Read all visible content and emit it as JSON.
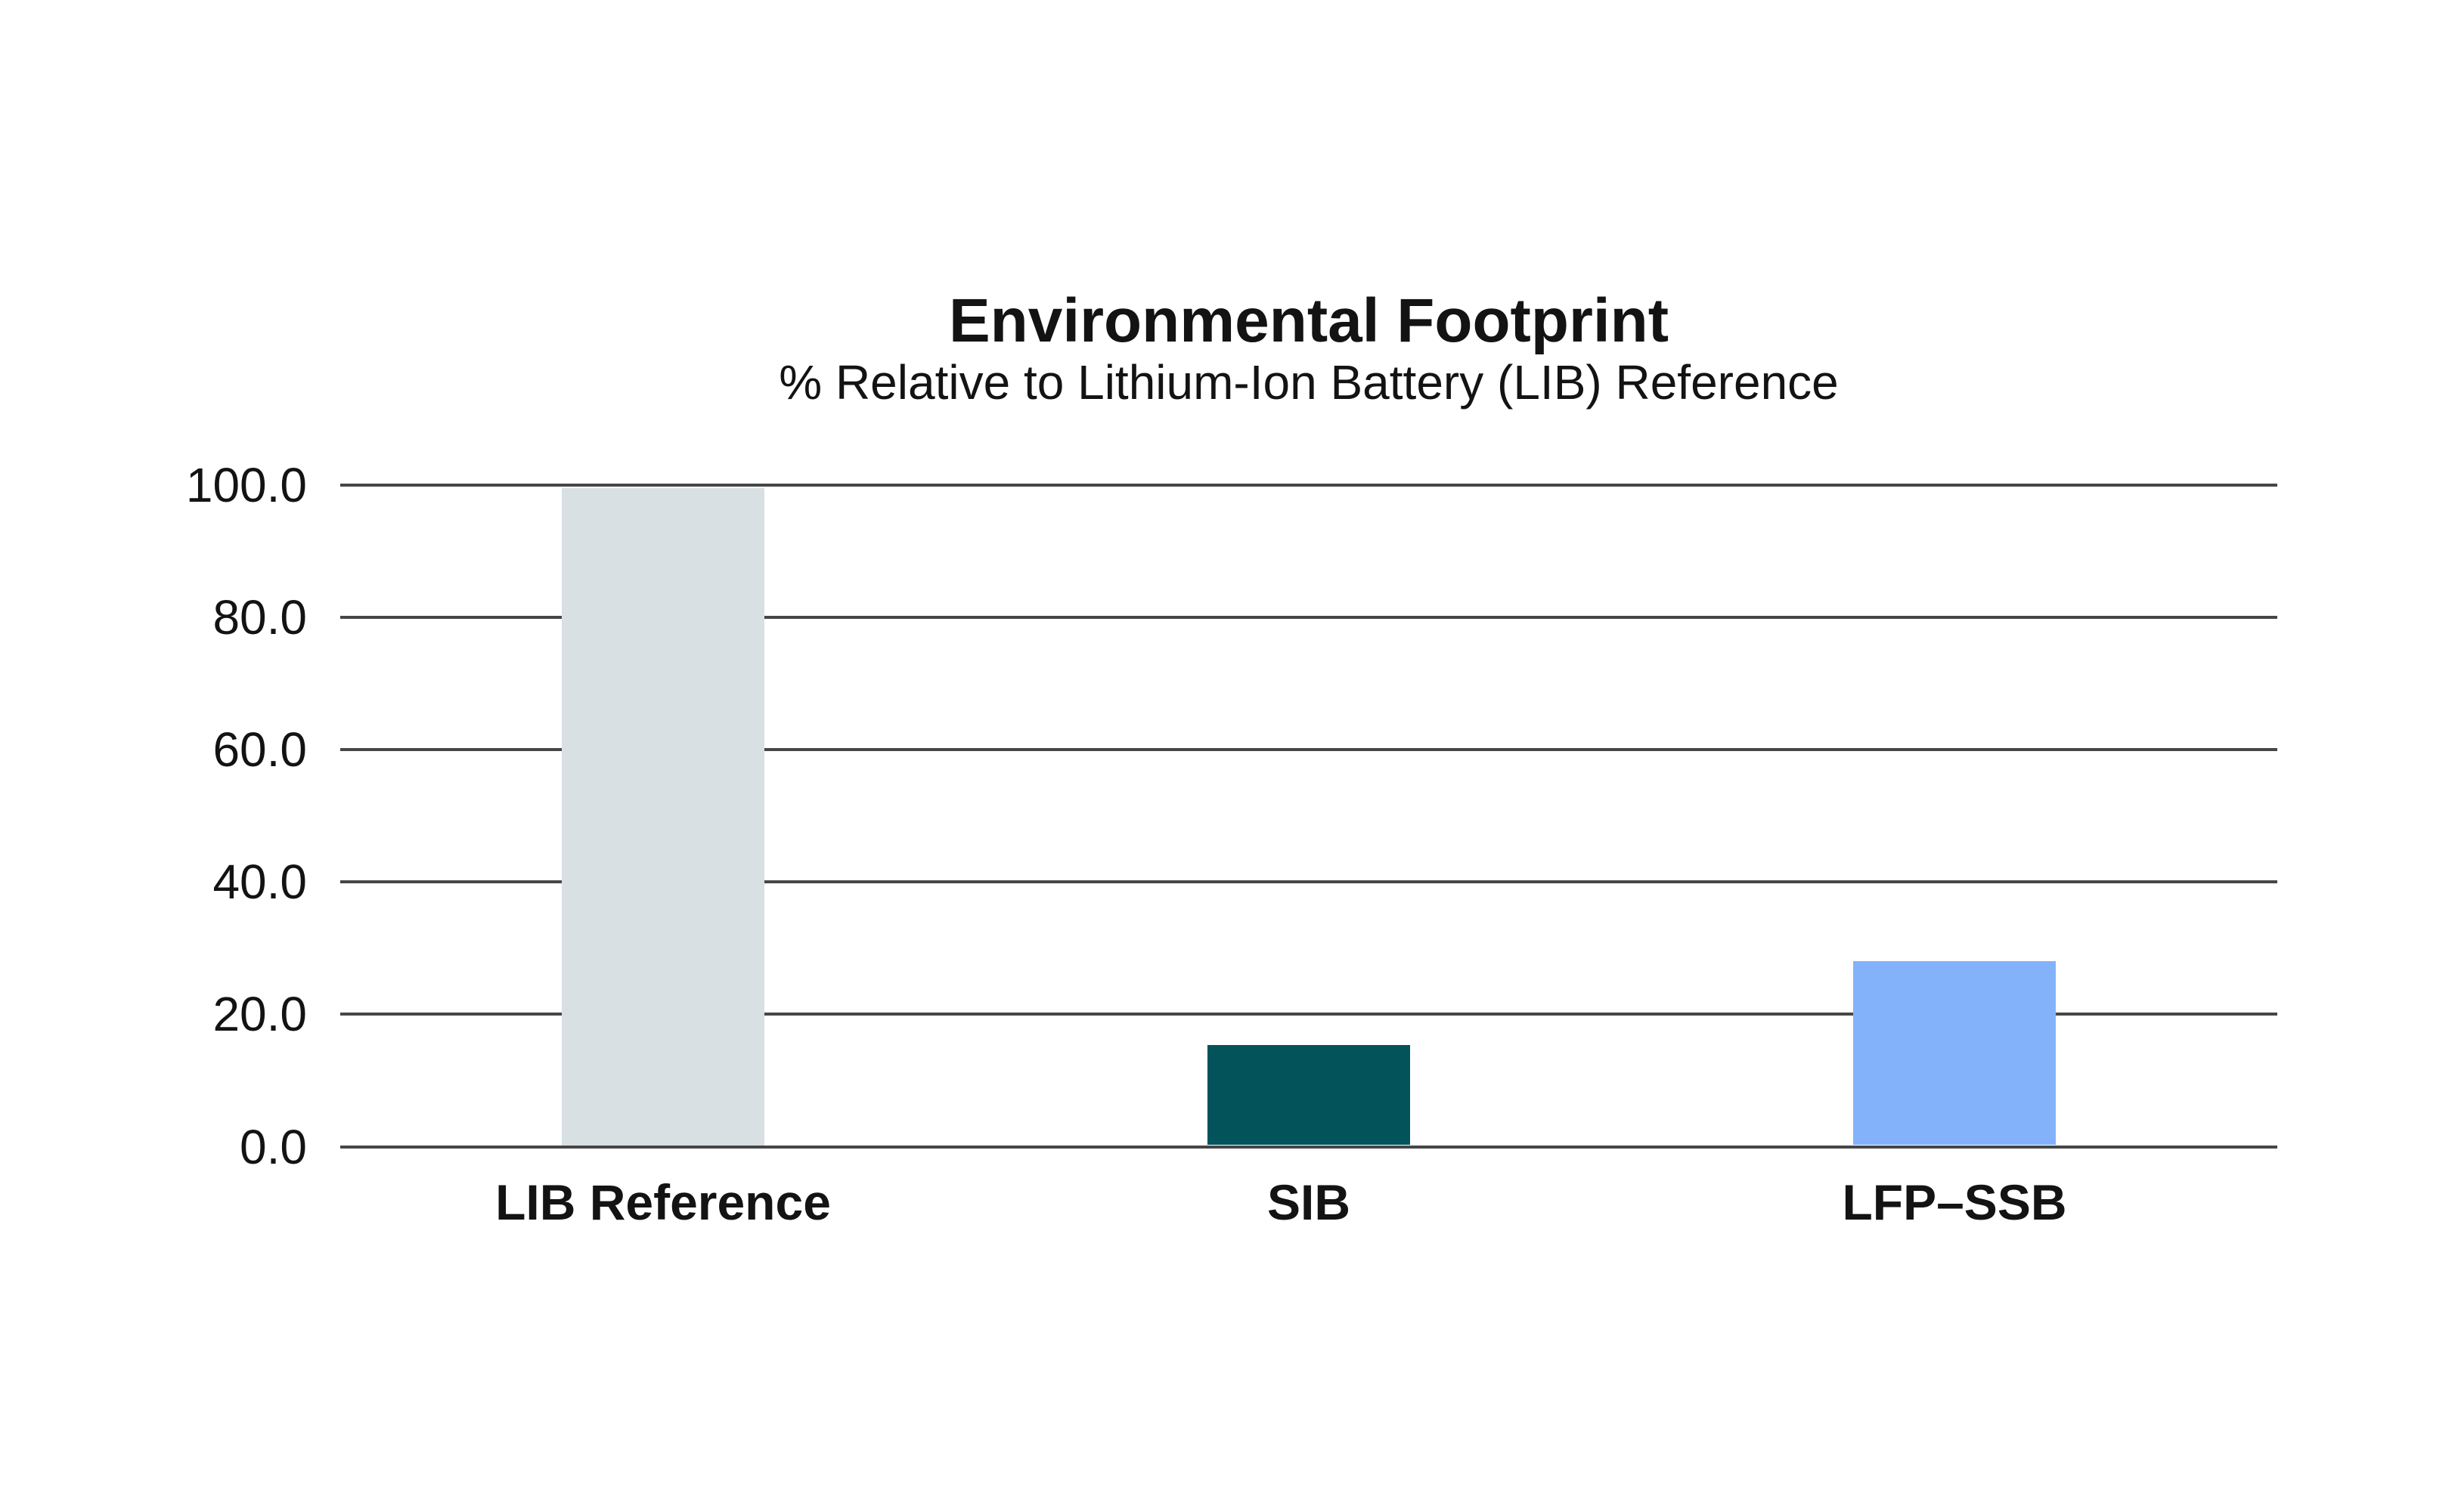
{
  "page": {
    "background_color": "#ffffff"
  },
  "chart_data": {
    "type": "bar",
    "title": "Environmental Footprint",
    "subtitle": "% Relative to Lithium-Ion Battery (LIB) Reference",
    "xlabel": "",
    "ylabel": "",
    "categories": [
      "LIB Reference",
      "SIB",
      "LFP–SSB"
    ],
    "values": [
      100.0,
      15.3,
      28.0
    ],
    "bar_colors": [
      "#d8e0e4",
      "#03535a",
      "#83b2fb"
    ],
    "ylim": [
      0,
      100
    ],
    "yticks": [
      100,
      80,
      60,
      40,
      20,
      0
    ],
    "ytick_labels": [
      "100.0",
      "80.0",
      "60.0",
      "40.0",
      "20.0",
      "0.0"
    ],
    "grid": "horizontal",
    "gridline_color": "#464646",
    "text_color": "#131313",
    "legend": "none"
  }
}
